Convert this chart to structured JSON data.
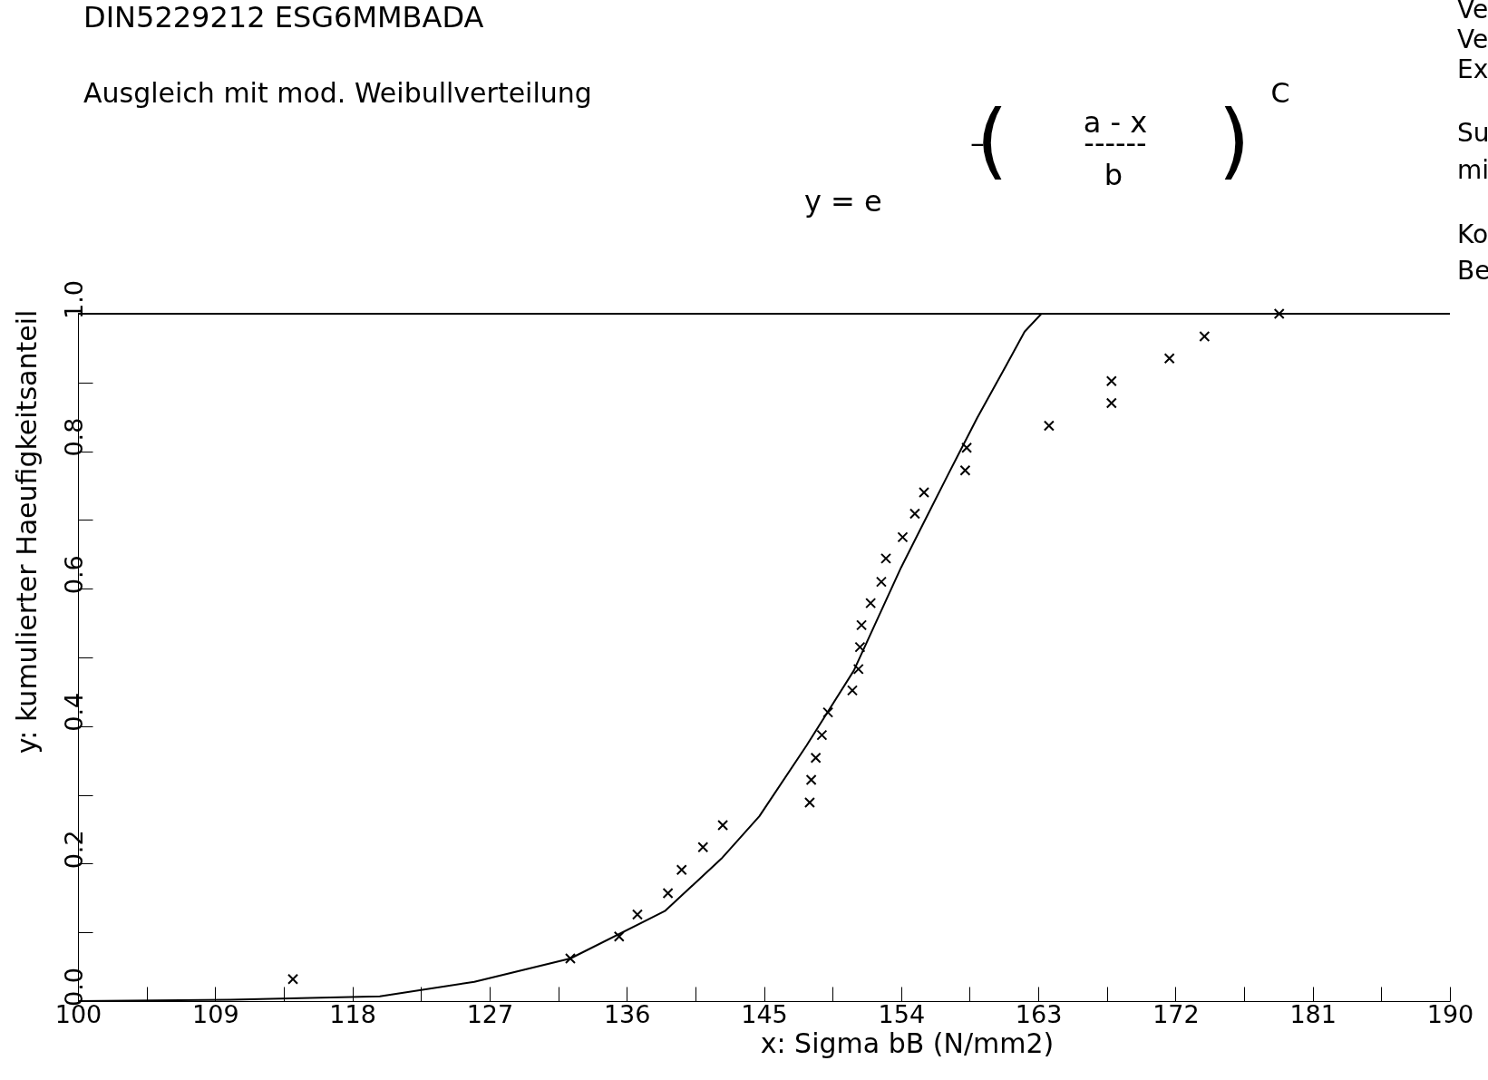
{
  "chart_data": {
    "type": "scatter",
    "title": "DIN5229212  ESG6MMBADA",
    "subtitle": "Ausgleich mit mod. Weibullverteilung",
    "xlabel": "x: Sigma bB (N/mm2)",
    "ylabel": "y: kumulierter Haeufigkeitsanteil",
    "annotations": [
      "y = e",
      "–",
      "(",
      "a - x",
      "------",
      "b",
      ")",
      "C",
      "Ve",
      "Ve",
      "Ex",
      "Su",
      "mi",
      "Ko",
      "Be"
    ],
    "xlim": [
      100,
      190
    ],
    "ylim": [
      0,
      1
    ],
    "xticks": [
      100,
      {
        "value": 104.5,
        "label": null
      },
      109,
      {
        "value": 113.5,
        "label": null
      },
      118,
      {
        "value": 122.5,
        "label": null
      },
      127,
      {
        "value": 131.5,
        "label": null
      },
      136,
      {
        "value": 140.5,
        "label": null
      },
      145,
      {
        "value": 149.5,
        "label": null
      },
      154,
      {
        "value": 158.5,
        "label": null
      },
      163,
      {
        "value": 167.5,
        "label": null
      },
      172,
      {
        "value": 176.5,
        "label": null
      },
      181,
      {
        "value": 185.5,
        "label": null
      },
      190
    ],
    "yticks": [
      {
        "value": 0,
        "label": "0.0"
      },
      {
        "value": 0.1,
        "label": null
      },
      0.2,
      {
        "value": 0.3,
        "label": null
      },
      0.4,
      {
        "value": 0.5,
        "label": null
      },
      0.6,
      {
        "value": 0.7,
        "label": null
      },
      0.8,
      {
        "value": 0.9,
        "label": null
      },
      {
        "value": 1,
        "label": "1.0"
      }
    ],
    "grid": false,
    "marker": "cross",
    "ref_lines": [
      {
        "axis": "y",
        "value": 1,
        "color": "#000000"
      }
    ],
    "series": [
      {
        "type": "line",
        "color": "#000000",
        "marker": "none",
        "line_style": "solid",
        "x": [
          100,
          110,
          119.8,
          126,
          132.3,
          138.5,
          142.2,
          144.7,
          147.8,
          150.9,
          154.0,
          157.1,
          159.0,
          160.9,
          162.1,
          163.2
        ],
        "values": [
          0,
          0.002,
          0.007,
          0.028,
          0.062,
          0.131,
          0.207,
          0.269,
          0.372,
          0.481,
          0.631,
          0.767,
          0.849,
          0.925,
          0.974,
          1.0
        ]
      },
      {
        "color": "#000000",
        "x": [
          114.1,
          132.3,
          135.5,
          136.7,
          138.7,
          139.6,
          141.0,
          142.3,
          148.0,
          148.1,
          148.4,
          148.8,
          149.2,
          150.8,
          151.2,
          151.3,
          151.4,
          152.0,
          152.7,
          153.0,
          154.1,
          154.9,
          155.5,
          158.2,
          158.3,
          163.7,
          167.8,
          167.8,
          171.6,
          173.9,
          178.8
        ],
        "values": [
          0.032,
          0.062,
          0.094,
          0.126,
          0.157,
          0.191,
          0.224,
          0.256,
          0.289,
          0.322,
          0.354,
          0.387,
          0.42,
          0.452,
          0.483,
          0.515,
          0.547,
          0.579,
          0.61,
          0.644,
          0.675,
          0.709,
          0.74,
          0.772,
          0.805,
          0.837,
          0.87,
          0.902,
          0.935,
          0.967,
          1.0
        ]
      }
    ]
  }
}
